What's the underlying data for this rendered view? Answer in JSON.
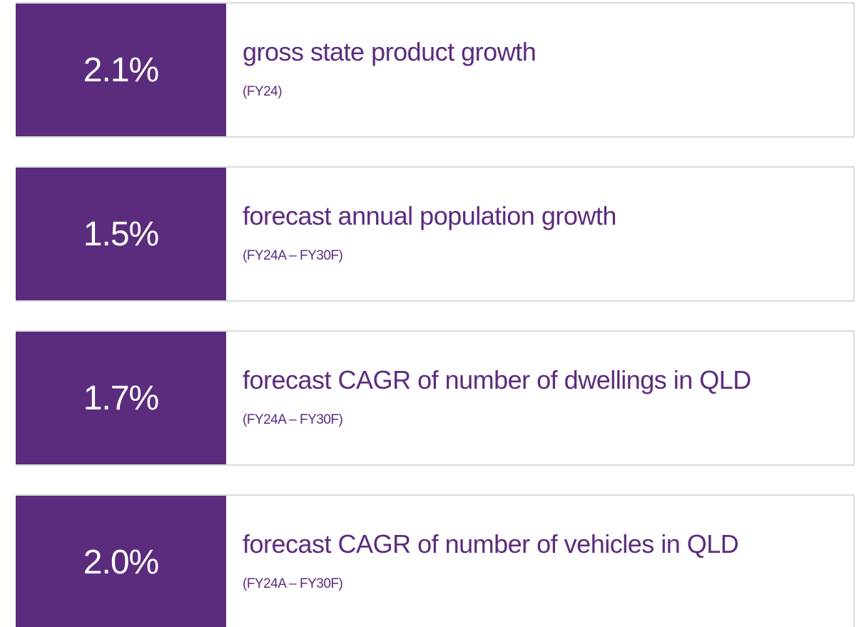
{
  "items": [
    {
      "value": "2.1%",
      "label": "gross state product growth",
      "period": "(FY24)"
    },
    {
      "value": "1.5%",
      "label": "forecast annual population growth",
      "period": "(FY24A – FY30F)"
    },
    {
      "value": "1.7%",
      "label": "forecast CAGR of number of dwellings in QLD",
      "period": "(FY24A – FY30F)"
    },
    {
      "value": "2.0%",
      "label": "forecast CAGR of number of vehicles in QLD",
      "period": "(FY24A – FY30F)"
    }
  ]
}
